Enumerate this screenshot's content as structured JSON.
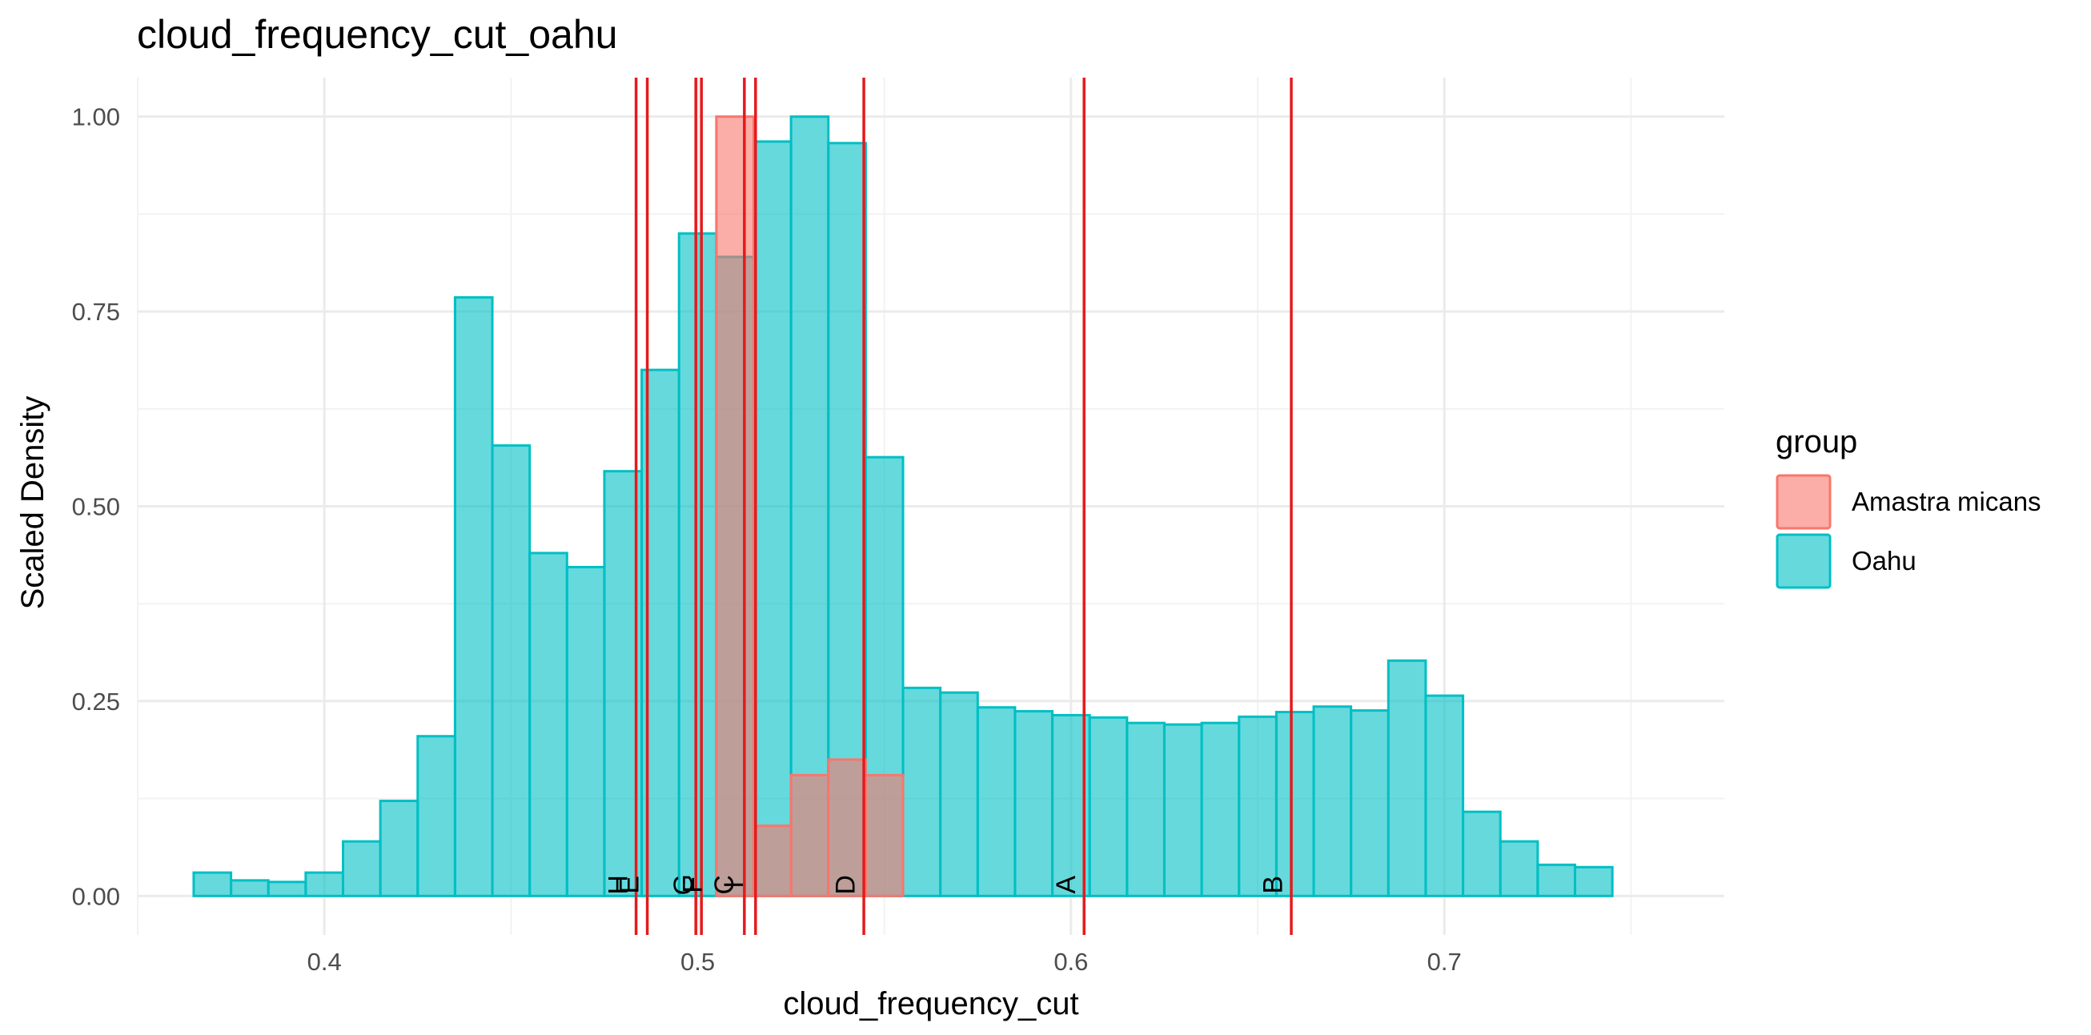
{
  "chart_data": {
    "type": "bar",
    "title": "cloud_frequency_cut_oahu",
    "xlabel": "cloud_frequency_cut",
    "ylabel": "Scaled Density",
    "xlim": [
      0.35,
      0.775
    ],
    "ylim": [
      -0.05,
      1.05
    ],
    "xticks": [
      0.4,
      0.5,
      0.6,
      0.7
    ],
    "xtick_labels": [
      "0.4",
      "0.5",
      "0.6",
      "0.7"
    ],
    "yticks": [
      0,
      0.25,
      0.5,
      0.75,
      1
    ],
    "ytick_labels": [
      "0.00",
      "0.25",
      "0.50",
      "0.75",
      "1.00"
    ],
    "grid": true,
    "bin_width": 0.01,
    "legend": {
      "title": "group",
      "position": "right",
      "entries": [
        {
          "label": "Amastra micans",
          "fill": "#F8766D",
          "stroke": "#F8766D"
        },
        {
          "label": "Oahu",
          "fill": "#00BFC4",
          "stroke": "#00BFC4"
        }
      ]
    },
    "series": [
      {
        "name": "Amastra micans",
        "fill": "#F8766D",
        "stroke": "#F8766D",
        "bin_starts": [
          0.505,
          0.515,
          0.525,
          0.535,
          0.545
        ],
        "values": [
          1.0,
          0.09,
          0.155,
          0.175,
          0.155
        ]
      },
      {
        "name": "Oahu",
        "fill": "#00BFC4",
        "stroke": "#00BFC4",
        "bin_starts": [
          0.365,
          0.375,
          0.385,
          0.395,
          0.405,
          0.415,
          0.425,
          0.435,
          0.445,
          0.455,
          0.465,
          0.475,
          0.485,
          0.495,
          0.505,
          0.515,
          0.525,
          0.535,
          0.545,
          0.555,
          0.565,
          0.575,
          0.585,
          0.595,
          0.605,
          0.615,
          0.625,
          0.635,
          0.645,
          0.655,
          0.665,
          0.675,
          0.685,
          0.695,
          0.705,
          0.715,
          0.725,
          0.735
        ],
        "values": [
          0.03,
          0.02,
          0.018,
          0.03,
          0.07,
          0.122,
          0.205,
          0.768,
          0.578,
          0.44,
          0.422,
          0.545,
          0.675,
          0.85,
          0.82,
          0.968,
          1.0,
          0.966,
          0.563,
          0.267,
          0.261,
          0.242,
          0.237,
          0.232,
          0.229,
          0.222,
          0.22,
          0.222,
          0.23,
          0.236,
          0.243,
          0.238,
          0.302,
          0.257,
          0.108,
          0.07,
          0.04,
          0.037
        ]
      }
    ],
    "vlines": {
      "color": "#E41A1C",
      "x": [
        0.4835,
        0.4865,
        0.4995,
        0.501,
        0.5125,
        0.5155,
        0.5445,
        0.6035,
        0.659
      ],
      "labels": [
        {
          "text": "H",
          "x": 0.4785
        },
        {
          "text": "E",
          "x": 0.4815
        },
        {
          "text": "G",
          "x": 0.496
        },
        {
          "text": "F",
          "x": 0.4985
        },
        {
          "text": "C",
          "x": 0.507
        },
        {
          "text": "I",
          "x": 0.5095
        },
        {
          "text": "D",
          "x": 0.5395
        },
        {
          "text": "A",
          "x": 0.5985
        },
        {
          "text": "B",
          "x": 0.654
        }
      ]
    }
  }
}
